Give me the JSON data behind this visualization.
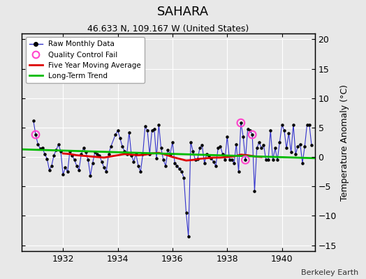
{
  "title": "SAHARA",
  "subtitle": "46.633 N, 109.167 W (United States)",
  "attribution": "Berkeley Earth",
  "ylabel": "Temperature Anomaly (°C)",
  "ylim": [
    -16,
    21
  ],
  "yticks": [
    -15,
    -10,
    -5,
    0,
    5,
    10,
    15,
    20
  ],
  "xlim": [
    1930.5,
    1941.2
  ],
  "xticks": [
    1932,
    1934,
    1936,
    1938,
    1940
  ],
  "background_color": "#e8e8e8",
  "fig_background_color": "#e8e8e8",
  "grid_color": "#ffffff",
  "raw_color": "#3333cc",
  "raw_marker_color": "#000000",
  "moving_avg_color": "#dd0000",
  "trend_color": "#00bb00",
  "qc_fail_color": "#ff44cc",
  "raw_data": [
    [
      1930.917,
      6.2
    ],
    [
      1931.0,
      3.8
    ],
    [
      1931.083,
      2.2
    ],
    [
      1931.167,
      1.4
    ],
    [
      1931.25,
      1.5
    ],
    [
      1931.333,
      0.5
    ],
    [
      1931.417,
      -0.3
    ],
    [
      1931.5,
      -2.2
    ],
    [
      1931.583,
      -1.5
    ],
    [
      1931.667,
      0.3
    ],
    [
      1931.75,
      1.2
    ],
    [
      1931.833,
      2.1
    ],
    [
      1931.917,
      1.0
    ],
    [
      1932.0,
      -3.0
    ],
    [
      1932.083,
      -1.8
    ],
    [
      1932.167,
      -2.5
    ],
    [
      1932.25,
      1.0
    ],
    [
      1932.333,
      0.3
    ],
    [
      1932.417,
      -0.5
    ],
    [
      1932.5,
      -1.5
    ],
    [
      1932.583,
      -2.2
    ],
    [
      1932.667,
      0.5
    ],
    [
      1932.75,
      1.5
    ],
    [
      1932.833,
      0.8
    ],
    [
      1932.917,
      -0.5
    ],
    [
      1933.0,
      -3.2
    ],
    [
      1933.083,
      -1.0
    ],
    [
      1933.167,
      0.8
    ],
    [
      1933.25,
      0.5
    ],
    [
      1933.333,
      0.2
    ],
    [
      1933.417,
      -0.8
    ],
    [
      1933.5,
      -1.8
    ],
    [
      1933.583,
      -2.5
    ],
    [
      1933.667,
      0.5
    ],
    [
      1933.75,
      1.8
    ],
    [
      1933.917,
      3.8
    ],
    [
      1934.0,
      4.5
    ],
    [
      1934.083,
      3.2
    ],
    [
      1934.167,
      1.8
    ],
    [
      1934.25,
      1.0
    ],
    [
      1934.333,
      0.5
    ],
    [
      1934.417,
      4.2
    ],
    [
      1934.5,
      0.3
    ],
    [
      1934.583,
      -0.8
    ],
    [
      1934.667,
      0.5
    ],
    [
      1934.75,
      -1.5
    ],
    [
      1934.833,
      -2.5
    ],
    [
      1934.917,
      0.5
    ],
    [
      1935.0,
      5.2
    ],
    [
      1935.083,
      4.5
    ],
    [
      1935.167,
      0.5
    ],
    [
      1935.25,
      4.5
    ],
    [
      1935.333,
      4.8
    ],
    [
      1935.417,
      -0.2
    ],
    [
      1935.5,
      5.5
    ],
    [
      1935.583,
      1.5
    ],
    [
      1935.667,
      -0.5
    ],
    [
      1935.75,
      -1.5
    ],
    [
      1935.833,
      1.2
    ],
    [
      1935.917,
      0.5
    ],
    [
      1936.0,
      2.5
    ],
    [
      1936.083,
      -1.0
    ],
    [
      1936.167,
      -1.5
    ],
    [
      1936.25,
      -2.0
    ],
    [
      1936.333,
      -2.5
    ],
    [
      1936.417,
      -3.5
    ],
    [
      1936.5,
      -9.5
    ],
    [
      1936.583,
      -13.5
    ],
    [
      1936.667,
      2.5
    ],
    [
      1936.75,
      1.0
    ],
    [
      1936.833,
      -0.5
    ],
    [
      1936.917,
      -0.3
    ],
    [
      1937.0,
      1.5
    ],
    [
      1937.083,
      2.0
    ],
    [
      1937.167,
      -1.0
    ],
    [
      1937.25,
      0.5
    ],
    [
      1937.333,
      0.3
    ],
    [
      1937.417,
      -0.2
    ],
    [
      1937.5,
      -0.8
    ],
    [
      1937.583,
      -1.5
    ],
    [
      1937.667,
      1.5
    ],
    [
      1937.75,
      1.8
    ],
    [
      1937.833,
      0.5
    ],
    [
      1937.917,
      -0.5
    ],
    [
      1938.0,
      3.5
    ],
    [
      1938.083,
      -0.5
    ],
    [
      1938.167,
      -0.5
    ],
    [
      1938.25,
      -1.0
    ],
    [
      1938.333,
      2.2
    ],
    [
      1938.417,
      -2.5
    ],
    [
      1938.5,
      5.8
    ],
    [
      1938.583,
      3.5
    ],
    [
      1938.667,
      -0.5
    ],
    [
      1938.75,
      4.8
    ],
    [
      1938.833,
      4.5
    ],
    [
      1938.917,
      3.8
    ],
    [
      1939.0,
      -5.8
    ],
    [
      1939.083,
      1.5
    ],
    [
      1939.167,
      2.5
    ],
    [
      1939.25,
      1.5
    ],
    [
      1939.333,
      2.0
    ],
    [
      1939.417,
      -0.5
    ],
    [
      1939.5,
      -0.5
    ],
    [
      1939.583,
      4.5
    ],
    [
      1939.667,
      -0.5
    ],
    [
      1939.75,
      1.5
    ],
    [
      1939.833,
      -0.5
    ],
    [
      1939.917,
      2.5
    ],
    [
      1940.0,
      5.5
    ],
    [
      1940.083,
      4.5
    ],
    [
      1940.167,
      1.5
    ],
    [
      1940.25,
      4.0
    ],
    [
      1940.333,
      0.8
    ],
    [
      1940.417,
      5.5
    ],
    [
      1940.5,
      0.5
    ],
    [
      1940.583,
      1.8
    ],
    [
      1940.667,
      2.2
    ],
    [
      1940.75,
      -1.0
    ],
    [
      1940.833,
      1.8
    ],
    [
      1940.917,
      5.5
    ],
    [
      1941.0,
      5.5
    ],
    [
      1941.083,
      2.0
    ]
  ],
  "moving_avg": [
    [
      1932.0,
      0.6
    ],
    [
      1932.25,
      0.5
    ],
    [
      1932.5,
      0.3
    ],
    [
      1932.75,
      0.2
    ],
    [
      1933.0,
      0.1
    ],
    [
      1933.25,
      0.0
    ],
    [
      1933.5,
      -0.1
    ],
    [
      1933.75,
      0.1
    ],
    [
      1934.0,
      0.3
    ],
    [
      1934.25,
      0.5
    ],
    [
      1934.5,
      0.4
    ],
    [
      1934.75,
      0.3
    ],
    [
      1935.0,
      0.4
    ],
    [
      1935.25,
      0.6
    ],
    [
      1935.5,
      0.7
    ],
    [
      1935.75,
      0.4
    ],
    [
      1936.0,
      0.0
    ],
    [
      1936.25,
      -0.3
    ],
    [
      1936.5,
      -0.6
    ],
    [
      1936.75,
      -0.5
    ],
    [
      1937.0,
      -0.3
    ],
    [
      1937.25,
      -0.2
    ],
    [
      1937.5,
      -0.1
    ],
    [
      1937.75,
      -0.1
    ],
    [
      1938.0,
      0.0
    ],
    [
      1938.25,
      0.1
    ],
    [
      1938.5,
      0.4
    ],
    [
      1938.75,
      0.3
    ],
    [
      1939.0,
      0.1
    ],
    [
      1939.25,
      0.0
    ]
  ],
  "trend_line": [
    [
      1930.5,
      1.3
    ],
    [
      1941.2,
      -0.2
    ]
  ],
  "qc_fail_points": [
    [
      1931.0,
      3.8
    ],
    [
      1938.5,
      5.8
    ],
    [
      1938.667,
      -0.5
    ],
    [
      1938.917,
      3.8
    ]
  ]
}
